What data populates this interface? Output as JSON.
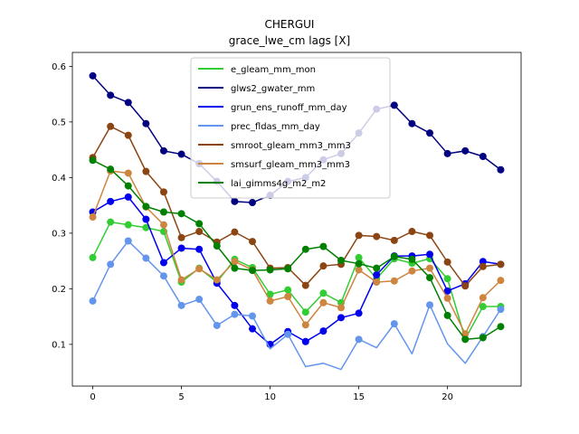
{
  "chart_data": {
    "type": "line",
    "title": "CHERGUI",
    "subtitle": "grace_lwe_cm lags [X]",
    "xlabel": "",
    "ylabel": "",
    "xlim": [
      -1.15,
      24.15
    ],
    "ylim": [
      0.025,
      0.625
    ],
    "xticks": [
      0,
      5,
      10,
      15,
      20
    ],
    "yticks": [
      0.1,
      0.2,
      0.3,
      0.4,
      0.5,
      0.6
    ],
    "ytick_labels": [
      "0.1",
      "0.2",
      "0.3",
      "0.4",
      "0.5",
      "0.6"
    ],
    "legend_position": "upper-center",
    "x": [
      0,
      1,
      2,
      3,
      4,
      5,
      6,
      7,
      8,
      9,
      10,
      11,
      12,
      13,
      14,
      15,
      16,
      17,
      18,
      19,
      20,
      21,
      22,
      23
    ],
    "series": [
      {
        "name": "e_gleam_mm_mon",
        "color": "#32cd32",
        "markers": [
          0,
          1,
          2,
          3,
          4,
          5,
          6,
          7,
          8,
          9,
          10,
          11,
          12,
          13,
          14,
          15,
          16,
          17,
          18,
          19,
          20,
          21,
          22,
          23
        ],
        "values": [
          0.256,
          0.32,
          0.315,
          0.31,
          0.303,
          0.212,
          0.237,
          0.212,
          0.253,
          0.238,
          0.19,
          0.198,
          0.158,
          0.192,
          0.175,
          0.256,
          0.218,
          0.254,
          0.246,
          0.254,
          0.218,
          0.11,
          0.168,
          0.168
        ]
      },
      {
        "name": "glws2_gwater_mm",
        "color": "#000080",
        "markers": [
          0,
          1,
          2,
          3,
          4,
          5,
          6,
          7,
          8,
          9,
          10,
          11,
          12,
          13,
          14,
          15,
          16,
          17,
          18,
          19,
          20,
          21,
          22,
          23
        ],
        "values": [
          0.583,
          0.548,
          0.535,
          0.497,
          0.448,
          0.442,
          0.425,
          0.393,
          0.357,
          0.355,
          0.368,
          0.393,
          0.4,
          0.432,
          0.443,
          0.48,
          0.523,
          0.53,
          0.497,
          0.48,
          0.443,
          0.448,
          0.438,
          0.414
        ]
      },
      {
        "name": "grun_ens_runoff_mm_day",
        "color": "#0000ee",
        "markers": [
          0,
          1,
          2,
          3,
          4,
          5,
          6,
          7,
          8,
          9,
          10,
          11,
          12,
          13,
          14,
          15,
          16,
          17,
          18,
          19,
          20,
          21,
          22,
          23
        ],
        "values": [
          0.338,
          0.357,
          0.365,
          0.325,
          0.247,
          0.273,
          0.271,
          0.21,
          0.17,
          0.128,
          0.1,
          0.123,
          0.105,
          0.124,
          0.148,
          0.156,
          0.225,
          0.259,
          0.259,
          0.262,
          0.196,
          0.209,
          0.249,
          0.244
        ]
      },
      {
        "name": "prec_fldas_mm_day",
        "color": "#6495ed",
        "markers": [
          0,
          1,
          2,
          3,
          4,
          5,
          6,
          7,
          8,
          9,
          11,
          15,
          17,
          19,
          22,
          23
        ],
        "values": [
          0.178,
          0.244,
          0.286,
          0.255,
          0.223,
          0.17,
          0.181,
          0.134,
          0.154,
          0.151,
          0.092,
          0.118,
          0.06,
          0.066,
          0.055,
          0.109,
          0.094,
          0.137,
          0.083,
          0.171,
          0.101,
          0.066,
          0.114,
          0.163
        ]
      },
      {
        "name": "smroot_gleam_mm3_mm3",
        "color": "#8b4513",
        "markers": [
          0,
          1,
          2,
          3,
          4,
          5,
          6,
          7,
          8,
          9,
          10,
          11,
          12,
          13,
          14,
          15,
          16,
          17,
          18,
          19,
          20,
          21,
          22,
          23
        ],
        "values": [
          0.436,
          0.492,
          0.476,
          0.411,
          0.374,
          0.292,
          0.303,
          0.284,
          0.302,
          0.285,
          0.237,
          0.238,
          0.206,
          0.241,
          0.244,
          0.296,
          0.294,
          0.287,
          0.303,
          0.296,
          0.248,
          0.205,
          0.24,
          0.244
        ]
      },
      {
        "name": "smsurf_gleam_mm3_mm3",
        "color": "#cd853f",
        "markers": [
          0,
          1,
          2,
          3,
          4,
          5,
          6,
          7,
          8,
          9,
          10,
          11,
          12,
          13,
          14,
          15,
          16,
          17,
          18,
          19,
          20,
          21,
          22,
          23
        ],
        "values": [
          0.329,
          0.412,
          0.408,
          0.347,
          0.315,
          0.216,
          0.236,
          0.216,
          0.249,
          0.234,
          0.178,
          0.186,
          0.135,
          0.175,
          0.166,
          0.234,
          0.212,
          0.214,
          0.232,
          0.237,
          0.183,
          0.119,
          0.184,
          0.215
        ]
      },
      {
        "name": "lai_gimms4g_m2_m2",
        "color": "#008000",
        "markers": [
          0,
          1,
          2,
          3,
          4,
          5,
          6,
          7,
          8,
          9,
          10,
          11,
          12,
          13,
          14,
          15,
          16,
          17,
          18,
          19,
          20,
          21,
          22,
          23
        ],
        "values": [
          0.431,
          0.415,
          0.385,
          0.348,
          0.338,
          0.335,
          0.317,
          0.277,
          0.237,
          0.233,
          0.234,
          0.236,
          0.271,
          0.276,
          0.251,
          0.245,
          0.237,
          0.258,
          0.253,
          0.22,
          0.152,
          0.109,
          0.112,
          0.132
        ]
      }
    ]
  }
}
